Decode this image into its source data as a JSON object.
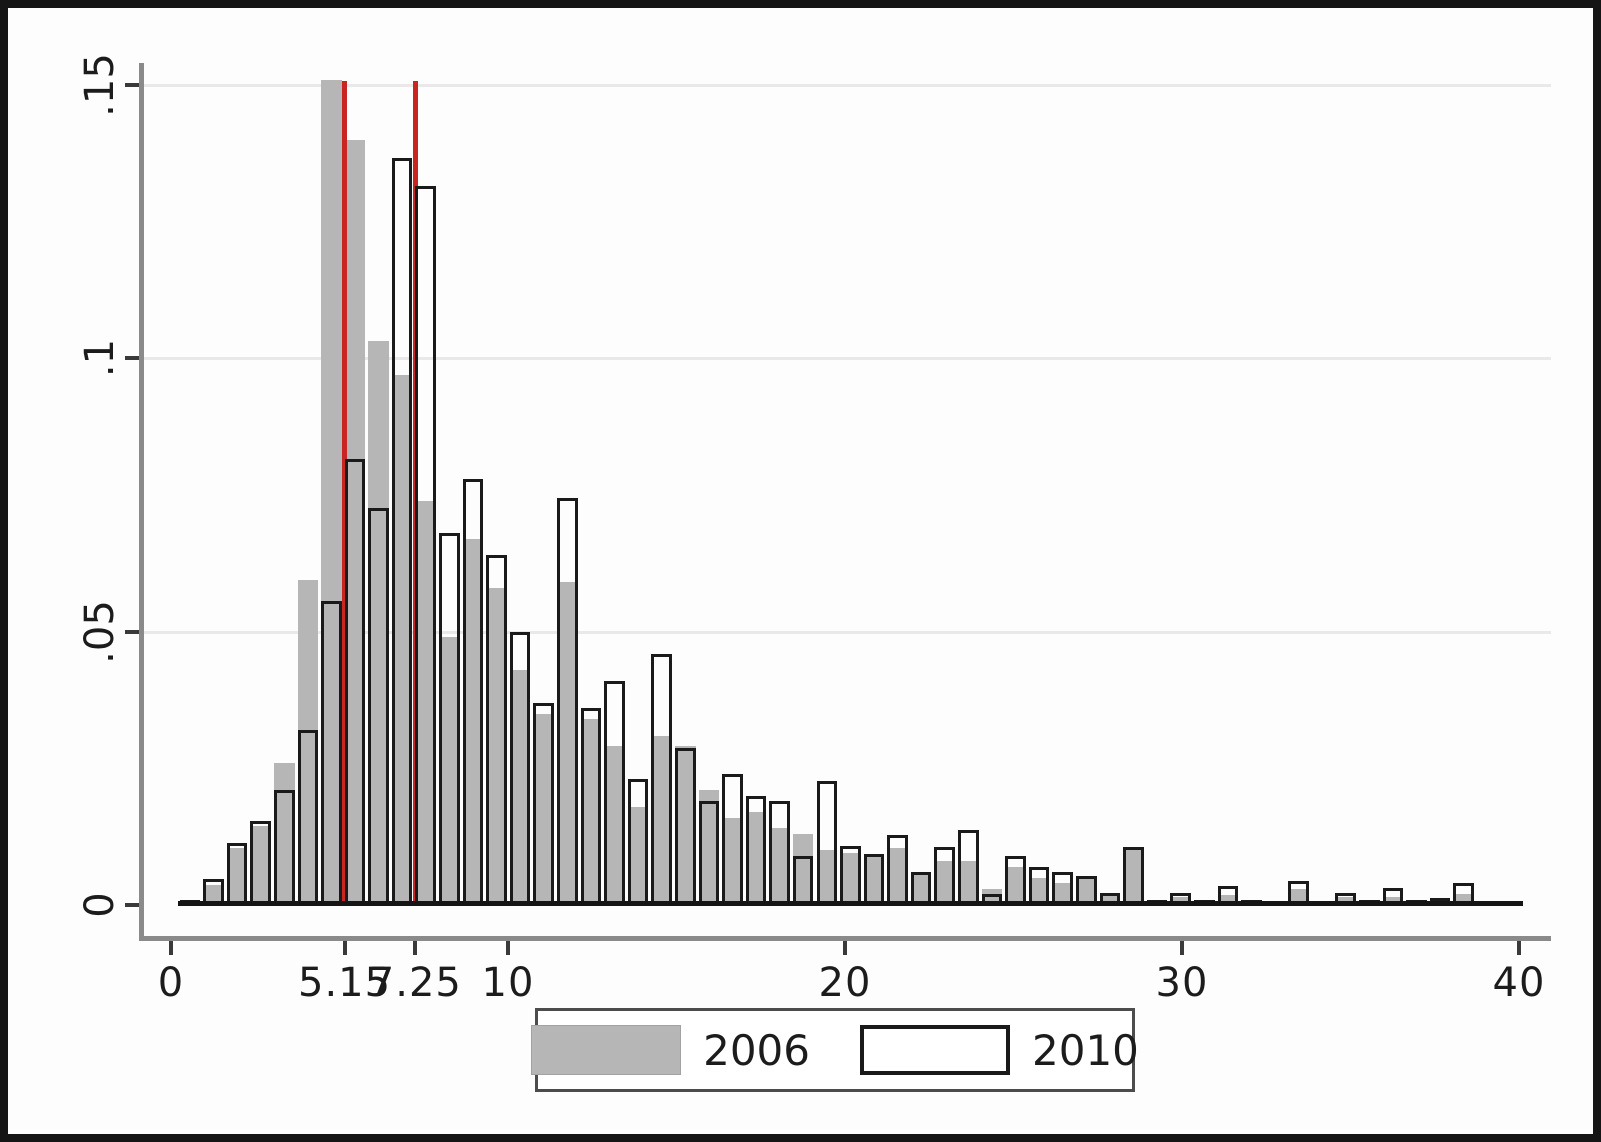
{
  "figure": {
    "background": "#fdfdfd",
    "frame_color": "#151515",
    "plot_bg": "#ffffff"
  },
  "y_axis": {
    "tick_labels": [
      "0",
      ".05",
      ".1",
      ".15"
    ],
    "tick_values": [
      0,
      0.05,
      0.1,
      0.15
    ]
  },
  "x_axis": {
    "tick_labels": [
      "0",
      "5.15",
      "7.25",
      "10",
      "20",
      "30",
      "40"
    ],
    "tick_values": [
      0,
      5.15,
      7.25,
      10,
      20,
      30,
      40
    ]
  },
  "reference_lines": [
    {
      "x": 5.15,
      "color": "#c92622"
    },
    {
      "x": 7.25,
      "color": "#c92622"
    }
  ],
  "legend": {
    "items": [
      {
        "label": "2006",
        "swatch": "gray-filled-swatch"
      },
      {
        "label": "2010",
        "swatch": "white-outlined-swatch"
      }
    ]
  },
  "chart_data": {
    "type": "bar",
    "subtype": "overlaid-histogram",
    "title": "",
    "xlabel": "",
    "ylabel": "",
    "xlim": [
      -0.95,
      40.95
    ],
    "ylim": [
      0,
      0.155
    ],
    "grid": "horizontal-faint",
    "legend_position": "bottom-center",
    "bin_width": 0.7,
    "bin_centers": [
      0.56,
      1.26,
      1.96,
      2.66,
      3.36,
      4.06,
      4.76,
      5.46,
      6.16,
      6.86,
      7.56,
      8.26,
      8.96,
      9.66,
      10.36,
      11.06,
      11.76,
      12.46,
      13.16,
      13.86,
      14.56,
      15.26,
      15.96,
      16.66,
      17.36,
      18.06,
      18.76,
      19.46,
      20.16,
      20.86,
      21.56,
      22.26,
      22.96,
      23.66,
      24.36,
      25.06,
      25.76,
      26.46,
      27.16,
      27.86,
      28.56,
      29.26,
      29.96,
      30.66,
      31.36,
      32.06,
      32.76,
      33.46,
      34.16,
      34.86,
      35.56,
      36.26,
      36.96,
      37.66,
      38.36,
      39.06,
      39.76
    ],
    "series": [
      {
        "name": "2006",
        "style": "filled",
        "fill": "#b6b6b6",
        "values": [
          0.001,
          0.0037,
          0.0104,
          0.0145,
          0.026,
          0.0595,
          0.151,
          0.14,
          0.1032,
          0.097,
          0.0739,
          0.049,
          0.067,
          0.058,
          0.043,
          0.035,
          0.059,
          0.034,
          0.029,
          0.018,
          0.031,
          0.029,
          0.021,
          0.016,
          0.017,
          0.014,
          0.013,
          0.01,
          0.0095,
          0.009,
          0.0104,
          0.006,
          0.008,
          0.008,
          0.003,
          0.007,
          0.005,
          0.004,
          0.005,
          0.002,
          0.0104,
          0.001,
          0.0015,
          0.001,
          0.0018,
          0.001,
          0.0005,
          0.003,
          0.0005,
          0.0015,
          0.001,
          0.0015,
          0.001,
          0.0013,
          0.002,
          0.0005,
          0.0003
        ]
      },
      {
        "name": "2010",
        "style": "hollow-outline",
        "outline": "#1a1a1a",
        "values": [
          0.001,
          0.0048,
          0.0113,
          0.0154,
          0.021,
          0.032,
          0.0556,
          0.0815,
          0.0727,
          0.1367,
          0.1315,
          0.068,
          0.078,
          0.064,
          0.05,
          0.037,
          0.0745,
          0.036,
          0.041,
          0.023,
          0.046,
          0.0287,
          0.019,
          0.024,
          0.02,
          0.019,
          0.009,
          0.0227,
          0.0108,
          0.0093,
          0.0128,
          0.006,
          0.0106,
          0.0137,
          0.002,
          0.009,
          0.007,
          0.006,
          0.0053,
          0.0022,
          0.0106,
          0.001,
          0.0022,
          0.001,
          0.0035,
          0.001,
          0.0005,
          0.0044,
          0.0005,
          0.0022,
          0.001,
          0.0031,
          0.001,
          0.0013,
          0.004,
          0.0005,
          0.0003
        ]
      }
    ]
  }
}
